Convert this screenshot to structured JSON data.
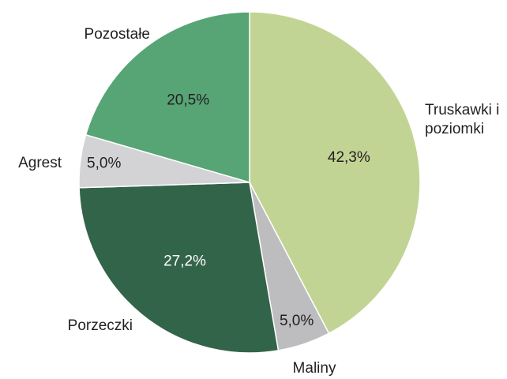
{
  "chart_data": {
    "type": "pie",
    "categories": [
      "Truskawki i poziomki",
      "Maliny",
      "Porzeczki",
      "Agrest",
      "Pozostałe"
    ],
    "values": [
      42.3,
      5.0,
      27.2,
      5.0,
      20.5
    ],
    "value_labels": [
      "42,3%",
      "5,0%",
      "27,2%",
      "5,0%",
      "20,5%"
    ],
    "colors": [
      "#c2d494",
      "#bdbdbf",
      "#32644a",
      "#d3d3d5",
      "#57a475"
    ]
  }
}
